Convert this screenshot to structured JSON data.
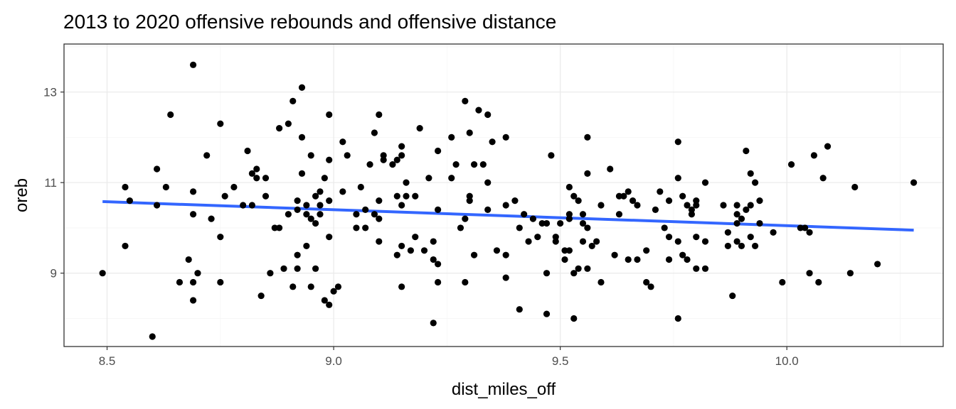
{
  "chart_data": {
    "type": "scatter",
    "title": "2013 to 2020 offensive rebounds and offensive distance",
    "xlabel": "dist_miles_off",
    "ylabel": "oreb",
    "xlim": [
      8.405,
      10.345
    ],
    "ylim": [
      7.38,
      14.06
    ],
    "x_ticks": [
      8.5,
      9.0,
      9.5,
      10.0
    ],
    "x_tick_labels": [
      "8.5",
      "9.0",
      "9.5",
      "10.0"
    ],
    "y_ticks": [
      9,
      11,
      13
    ],
    "y_tick_labels": [
      "9",
      "11",
      "13"
    ],
    "grid": true,
    "legend": "none",
    "point_color": "#000000",
    "trend_line": {
      "method": "linear",
      "color": "#3366ff",
      "x": [
        8.49,
        10.28
      ],
      "y": [
        10.58,
        9.95
      ]
    },
    "points": [
      [
        8.49,
        9.0
      ],
      [
        8.54,
        10.9
      ],
      [
        8.54,
        9.6
      ],
      [
        8.55,
        10.6
      ],
      [
        8.6,
        7.6
      ],
      [
        8.61,
        11.3
      ],
      [
        8.61,
        10.5
      ],
      [
        8.63,
        10.9
      ],
      [
        8.64,
        12.5
      ],
      [
        8.66,
        8.8
      ],
      [
        8.68,
        9.3
      ],
      [
        8.69,
        13.6
      ],
      [
        8.69,
        10.8
      ],
      [
        8.69,
        10.3
      ],
      [
        8.69,
        8.8
      ],
      [
        8.69,
        8.4
      ],
      [
        8.7,
        9.0
      ],
      [
        8.72,
        11.6
      ],
      [
        8.73,
        10.2
      ],
      [
        8.75,
        12.3
      ],
      [
        8.75,
        9.8
      ],
      [
        8.75,
        8.8
      ],
      [
        8.76,
        10.7
      ],
      [
        8.78,
        10.9
      ],
      [
        8.8,
        10.5
      ],
      [
        8.81,
        11.7
      ],
      [
        8.82,
        11.2
      ],
      [
        8.82,
        10.5
      ],
      [
        8.83,
        11.3
      ],
      [
        8.83,
        11.1
      ],
      [
        8.84,
        8.5
      ],
      [
        8.85,
        11.1
      ],
      [
        8.85,
        10.7
      ],
      [
        8.86,
        9.0
      ],
      [
        8.87,
        10.0
      ],
      [
        8.88,
        10.0
      ],
      [
        8.88,
        12.2
      ],
      [
        8.89,
        9.1
      ],
      [
        8.9,
        12.3
      ],
      [
        8.9,
        10.3
      ],
      [
        8.91,
        12.8
      ],
      [
        8.91,
        8.7
      ],
      [
        8.92,
        10.4
      ],
      [
        8.92,
        10.6
      ],
      [
        8.92,
        9.4
      ],
      [
        8.92,
        9.1
      ],
      [
        8.93,
        13.1
      ],
      [
        8.93,
        12.0
      ],
      [
        8.93,
        11.2
      ],
      [
        8.94,
        10.3
      ],
      [
        8.94,
        10.5
      ],
      [
        8.94,
        9.6
      ],
      [
        8.95,
        11.6
      ],
      [
        8.95,
        10.2
      ],
      [
        8.95,
        8.7
      ],
      [
        8.96,
        10.7
      ],
      [
        8.96,
        10.1
      ],
      [
        8.96,
        9.1
      ],
      [
        8.97,
        10.8
      ],
      [
        8.97,
        10.5
      ],
      [
        8.97,
        10.3
      ],
      [
        8.98,
        11.1
      ],
      [
        8.98,
        8.4
      ],
      [
        8.99,
        12.5
      ],
      [
        8.99,
        11.5
      ],
      [
        8.99,
        10.6
      ],
      [
        8.99,
        9.8
      ],
      [
        8.99,
        8.3
      ],
      [
        9.0,
        8.6
      ],
      [
        9.01,
        8.7
      ],
      [
        9.02,
        11.9
      ],
      [
        9.02,
        10.8
      ],
      [
        9.03,
        11.6
      ],
      [
        9.05,
        10.3
      ],
      [
        9.05,
        10.0
      ],
      [
        9.06,
        10.9
      ],
      [
        9.07,
        10.4
      ],
      [
        9.07,
        10.0
      ],
      [
        9.08,
        11.4
      ],
      [
        9.09,
        12.1
      ],
      [
        9.09,
        10.3
      ],
      [
        9.1,
        12.5
      ],
      [
        9.1,
        10.6
      ],
      [
        9.1,
        10.2
      ],
      [
        9.1,
        9.7
      ],
      [
        9.11,
        11.6
      ],
      [
        9.11,
        11.5
      ],
      [
        9.13,
        11.4
      ],
      [
        9.14,
        11.5
      ],
      [
        9.14,
        10.7
      ],
      [
        9.14,
        9.4
      ],
      [
        9.15,
        11.8
      ],
      [
        9.15,
        11.6
      ],
      [
        9.15,
        10.5
      ],
      [
        9.15,
        9.6
      ],
      [
        9.15,
        8.7
      ],
      [
        9.16,
        11.0
      ],
      [
        9.16,
        10.7
      ],
      [
        9.17,
        9.5
      ],
      [
        9.18,
        10.7
      ],
      [
        9.18,
        9.8
      ],
      [
        9.19,
        12.2
      ],
      [
        9.2,
        9.5
      ],
      [
        9.21,
        11.1
      ],
      [
        9.22,
        9.7
      ],
      [
        9.22,
        9.3
      ],
      [
        9.22,
        7.9
      ],
      [
        9.23,
        11.7
      ],
      [
        9.23,
        10.4
      ],
      [
        9.23,
        9.2
      ],
      [
        9.23,
        8.8
      ],
      [
        9.26,
        12.0
      ],
      [
        9.26,
        11.1
      ],
      [
        9.27,
        11.4
      ],
      [
        9.28,
        10.0
      ],
      [
        9.29,
        12.8
      ],
      [
        9.29,
        10.2
      ],
      [
        9.29,
        8.8
      ],
      [
        9.3,
        12.1
      ],
      [
        9.3,
        10.7
      ],
      [
        9.3,
        10.6
      ],
      [
        9.31,
        11.4
      ],
      [
        9.31,
        9.4
      ],
      [
        9.32,
        12.6
      ],
      [
        9.33,
        11.4
      ],
      [
        9.34,
        12.5
      ],
      [
        9.34,
        11.0
      ],
      [
        9.34,
        10.4
      ],
      [
        9.35,
        11.9
      ],
      [
        9.36,
        9.5
      ],
      [
        9.38,
        12.0
      ],
      [
        9.38,
        10.5
      ],
      [
        9.38,
        9.4
      ],
      [
        9.38,
        8.9
      ],
      [
        9.4,
        10.6
      ],
      [
        9.41,
        10.0
      ],
      [
        9.41,
        8.2
      ],
      [
        9.42,
        10.3
      ],
      [
        9.43,
        9.7
      ],
      [
        9.44,
        10.2
      ],
      [
        9.45,
        9.8
      ],
      [
        9.46,
        10.1
      ],
      [
        9.47,
        10.1
      ],
      [
        9.47,
        9.0
      ],
      [
        9.47,
        8.1
      ],
      [
        9.48,
        11.6
      ],
      [
        9.49,
        9.8
      ],
      [
        9.49,
        9.7
      ],
      [
        9.5,
        10.1
      ],
      [
        9.51,
        9.5
      ],
      [
        9.51,
        9.3
      ],
      [
        9.52,
        10.9
      ],
      [
        9.52,
        10.3
      ],
      [
        9.52,
        10.2
      ],
      [
        9.52,
        9.5
      ],
      [
        9.53,
        10.7
      ],
      [
        9.53,
        9.0
      ],
      [
        9.53,
        8.0
      ],
      [
        9.54,
        10.6
      ],
      [
        9.54,
        9.1
      ],
      [
        9.55,
        10.3
      ],
      [
        9.55,
        10.1
      ],
      [
        9.55,
        9.7
      ],
      [
        9.56,
        12.0
      ],
      [
        9.56,
        11.2
      ],
      [
        9.56,
        10.0
      ],
      [
        9.56,
        9.1
      ],
      [
        9.57,
        9.6
      ],
      [
        9.58,
        9.7
      ],
      [
        9.59,
        10.5
      ],
      [
        9.59,
        8.8
      ],
      [
        9.61,
        11.3
      ],
      [
        9.62,
        9.4
      ],
      [
        9.63,
        10.7
      ],
      [
        9.63,
        10.3
      ],
      [
        9.64,
        10.7
      ],
      [
        9.65,
        10.8
      ],
      [
        9.65,
        9.3
      ],
      [
        9.66,
        10.6
      ],
      [
        9.67,
        10.5
      ],
      [
        9.67,
        9.3
      ],
      [
        9.69,
        9.5
      ],
      [
        9.69,
        8.8
      ],
      [
        9.7,
        8.7
      ],
      [
        9.71,
        10.4
      ],
      [
        9.72,
        10.8
      ],
      [
        9.73,
        10.0
      ],
      [
        9.74,
        10.6
      ],
      [
        9.74,
        9.8
      ],
      [
        9.74,
        9.3
      ],
      [
        9.76,
        11.9
      ],
      [
        9.76,
        11.1
      ],
      [
        9.76,
        9.7
      ],
      [
        9.76,
        8.0
      ],
      [
        9.77,
        10.7
      ],
      [
        9.77,
        9.4
      ],
      [
        9.78,
        10.5
      ],
      [
        9.78,
        9.3
      ],
      [
        9.79,
        10.4
      ],
      [
        9.79,
        10.3
      ],
      [
        9.8,
        10.6
      ],
      [
        9.8,
        10.5
      ],
      [
        9.8,
        9.8
      ],
      [
        9.8,
        9.1
      ],
      [
        9.82,
        11.0
      ],
      [
        9.82,
        9.7
      ],
      [
        9.82,
        9.1
      ],
      [
        9.86,
        10.5
      ],
      [
        9.87,
        9.9
      ],
      [
        9.87,
        9.6
      ],
      [
        9.88,
        8.5
      ],
      [
        9.89,
        10.5
      ],
      [
        9.89,
        10.3
      ],
      [
        9.89,
        10.1
      ],
      [
        9.89,
        9.7
      ],
      [
        9.9,
        10.2
      ],
      [
        9.9,
        9.6
      ],
      [
        9.91,
        11.7
      ],
      [
        9.91,
        10.4
      ],
      [
        9.92,
        11.2
      ],
      [
        9.92,
        10.5
      ],
      [
        9.92,
        9.8
      ],
      [
        9.93,
        11.0
      ],
      [
        9.93,
        9.6
      ],
      [
        9.94,
        10.6
      ],
      [
        9.94,
        10.1
      ],
      [
        9.97,
        9.9
      ],
      [
        9.99,
        8.8
      ],
      [
        10.01,
        11.4
      ],
      [
        10.03,
        10.0
      ],
      [
        10.04,
        10.0
      ],
      [
        10.05,
        9.9
      ],
      [
        10.05,
        9.0
      ],
      [
        10.06,
        11.6
      ],
      [
        10.07,
        8.8
      ],
      [
        10.08,
        11.1
      ],
      [
        10.09,
        11.8
      ],
      [
        10.14,
        9.0
      ],
      [
        10.15,
        10.9
      ],
      [
        10.2,
        9.2
      ],
      [
        10.28,
        11.0
      ]
    ]
  }
}
